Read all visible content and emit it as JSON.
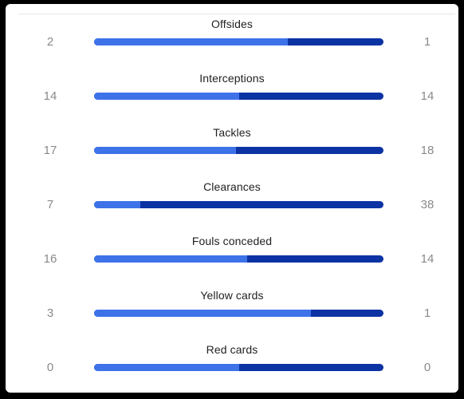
{
  "colors": {
    "home_bar": "#3d72e8",
    "away_bar": "#0c33a3",
    "label": "#222222",
    "value": "#8a8a8a"
  },
  "stats": [
    {
      "label": "Offsides",
      "home": "2",
      "away": "1",
      "home_share": 0.67
    },
    {
      "label": "Interceptions",
      "home": "14",
      "away": "14",
      "home_share": 0.5
    },
    {
      "label": "Tackles",
      "home": "17",
      "away": "18",
      "home_share": 0.49
    },
    {
      "label": "Clearances",
      "home": "7",
      "away": "38",
      "home_share": 0.16
    },
    {
      "label": "Fouls conceded",
      "home": "16",
      "away": "14",
      "home_share": 0.53
    },
    {
      "label": "Yellow cards",
      "home": "3",
      "away": "1",
      "home_share": 0.75
    },
    {
      "label": "Red cards",
      "home": "0",
      "away": "0",
      "home_share": 0.5
    }
  ]
}
